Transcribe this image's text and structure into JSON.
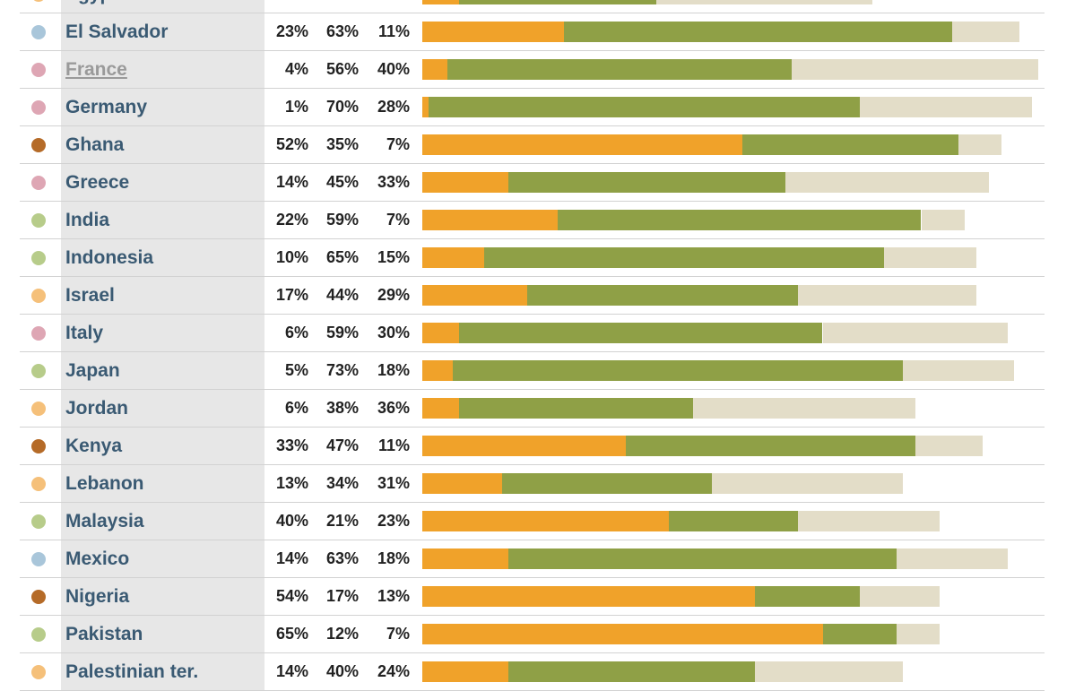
{
  "colors": {
    "seg1": "#f0a22a",
    "seg2": "#8fa046",
    "seg3": "#e3ddc8"
  },
  "chart_data": {
    "type": "bar",
    "stacked": true,
    "orientation": "horizontal",
    "xlim": [
      0,
      100
    ],
    "rows": [
      {
        "country": "Egypt",
        "dot": "#f5c07a",
        "values": [
          6,
          32,
          35
        ]
      },
      {
        "country": "El Salvador",
        "dot": "#a9c6da",
        "values": [
          23,
          63,
          11
        ]
      },
      {
        "country": "France",
        "dot": "#dea6b4",
        "values": [
          4,
          56,
          40
        ],
        "link": true
      },
      {
        "country": "Germany",
        "dot": "#dea6b4",
        "values": [
          1,
          70,
          28
        ]
      },
      {
        "country": "Ghana",
        "dot": "#b56b28",
        "values": [
          52,
          35,
          7
        ]
      },
      {
        "country": "Greece",
        "dot": "#dea6b4",
        "values": [
          14,
          45,
          33
        ]
      },
      {
        "country": "India",
        "dot": "#b7cc8a",
        "values": [
          22,
          59,
          7
        ]
      },
      {
        "country": "Indonesia",
        "dot": "#b7cc8a",
        "values": [
          10,
          65,
          15
        ]
      },
      {
        "country": "Israel",
        "dot": "#f5c07a",
        "values": [
          17,
          44,
          29
        ]
      },
      {
        "country": "Italy",
        "dot": "#dea6b4",
        "values": [
          6,
          59,
          30
        ]
      },
      {
        "country": "Japan",
        "dot": "#b7cc8a",
        "values": [
          5,
          73,
          18
        ]
      },
      {
        "country": "Jordan",
        "dot": "#f5c07a",
        "values": [
          6,
          38,
          36
        ]
      },
      {
        "country": "Kenya",
        "dot": "#b56b28",
        "values": [
          33,
          47,
          11
        ]
      },
      {
        "country": "Lebanon",
        "dot": "#f5c07a",
        "values": [
          13,
          34,
          31
        ]
      },
      {
        "country": "Malaysia",
        "dot": "#b7cc8a",
        "values": [
          40,
          21,
          23
        ]
      },
      {
        "country": "Mexico",
        "dot": "#a9c6da",
        "values": [
          14,
          63,
          18
        ]
      },
      {
        "country": "Nigeria",
        "dot": "#b56b28",
        "values": [
          54,
          17,
          13
        ]
      },
      {
        "country": "Pakistan",
        "dot": "#b7cc8a",
        "values": [
          65,
          12,
          7
        ]
      },
      {
        "country": "Palestinian ter.",
        "dot": "#f5c07a",
        "values": [
          14,
          40,
          24
        ]
      }
    ]
  }
}
